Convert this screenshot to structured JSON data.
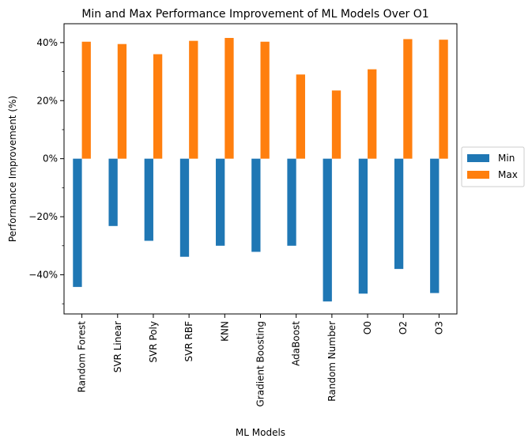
{
  "chart_data": {
    "type": "bar",
    "title": "Min and Max Performance Improvement of ML Models Over O1",
    "xlabel": "ML Models",
    "ylabel": "Performance Improvement (%)",
    "categories": [
      "Random Forest",
      "SVR Linear",
      "SVR Poly",
      "SVR RBF",
      "KNN",
      "Gradient Boosting",
      "AdaBoost",
      "Random Number",
      "O0",
      "O2",
      "O3"
    ],
    "series": [
      {
        "name": "Min",
        "color": "#1f77b4",
        "values": [
          -44.2,
          -23.2,
          -28.3,
          -33.8,
          -30.0,
          -32.1,
          -30.0,
          -49.2,
          -46.5,
          -38.0,
          -46.3
        ]
      },
      {
        "name": "Max",
        "color": "#ff7f0e",
        "values": [
          40.3,
          39.5,
          36.0,
          40.6,
          41.6,
          40.3,
          29.0,
          23.5,
          30.8,
          41.2,
          41.0
        ]
      }
    ],
    "ylim": [
      -53.5,
      46.5
    ],
    "yticks": [
      -40,
      -20,
      0,
      20,
      40
    ],
    "ytick_labels": [
      "−40%",
      "−20%",
      "0%",
      "20%",
      "40%"
    ],
    "grid": false,
    "legend_position": "center-right-outside"
  }
}
